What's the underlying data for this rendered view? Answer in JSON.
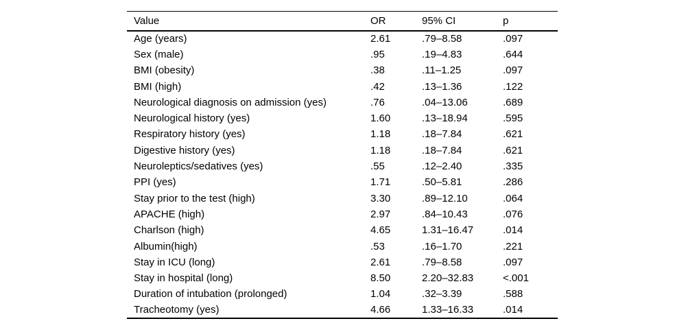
{
  "table": {
    "columns": [
      "Value",
      "OR",
      "95% CI",
      "p"
    ],
    "rows": [
      {
        "value": "Age (years)",
        "or": "2.61",
        "ci": ".79–8.58",
        "p": ".097",
        "p_bold": false
      },
      {
        "value": "Sex (male)",
        "or": ".95",
        "ci": ".19–4.83",
        "p": ".644",
        "p_bold": false
      },
      {
        "value": "BMI (obesity)",
        "or": ".38",
        "ci": ".11–1.25",
        "p": ".097",
        "p_bold": false
      },
      {
        "value": "BMI (high)",
        "or": ".42",
        "ci": ".13–1.36",
        "p": ".122",
        "p_bold": false
      },
      {
        "value": "Neurological diagnosis on admission (yes)",
        "or": ".76",
        "ci": ".04–13.06",
        "p": ".689",
        "p_bold": false
      },
      {
        "value": "Neurological history (yes)",
        "or": "1.60",
        "ci": ".13–18.94",
        "p": ".595",
        "p_bold": false
      },
      {
        "value": "Respiratory history (yes)",
        "or": "1.18",
        "ci": ".18–7.84",
        "p": ".621",
        "p_bold": false
      },
      {
        "value": "Digestive history (yes)",
        "or": "1.18",
        "ci": ".18–7.84",
        "p": ".621",
        "p_bold": false
      },
      {
        "value": "Neuroleptics/sedatives (yes)",
        "or": ".55",
        "ci": ".12–2.40",
        "p": ".335",
        "p_bold": false
      },
      {
        "value": "PPI (yes)",
        "or": "1.71",
        "ci": ".50–5.81",
        "p": ".286",
        "p_bold": false
      },
      {
        "value": "Stay prior to the test (high)",
        "or": "3.30",
        "ci": ".89–12.10",
        "p": ".064",
        "p_bold": false
      },
      {
        "value": "APACHE (high)",
        "or": "2.97",
        "ci": ".84–10.43",
        "p": ".076",
        "p_bold": false
      },
      {
        "value": "Charlson (high)",
        "or": "4.65",
        "ci": "1.31–16.47",
        "p": ".014",
        "p_bold": true
      },
      {
        "value": "Albumin(high)",
        "or": ".53",
        "ci": ".16–1.70",
        "p": ".221",
        "p_bold": false
      },
      {
        "value": "Stay in ICU (long)",
        "or": "2.61",
        "ci": ".79–8.58",
        "p": ".097",
        "p_bold": false
      },
      {
        "value": "Stay in hospital (long)",
        "or": "8.50",
        "ci": "2.20–32.83",
        "p": "<.001",
        "p_bold": true
      },
      {
        "value": "Duration of intubation (prolonged)",
        "or": "1.04",
        "ci": ".32–3.39",
        "p": ".588",
        "p_bold": false
      },
      {
        "value": "Tracheotomy (yes)",
        "or": "4.66",
        "ci": "1.33–16.33",
        "p": ".014",
        "p_bold": true
      }
    ]
  },
  "colors": {
    "text": "#000000",
    "background": "#ffffff",
    "rule": "#000000"
  }
}
